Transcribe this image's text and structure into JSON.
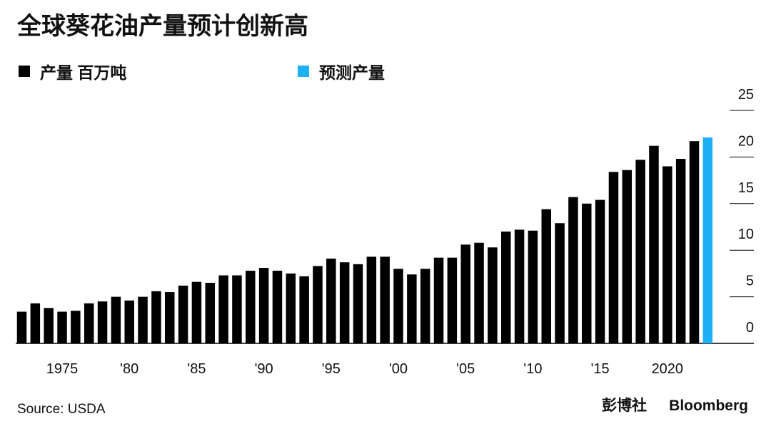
{
  "chart_data": {
    "type": "bar",
    "title": "全球葵花油产量预计创新高",
    "categories": [
      null,
      null,
      null,
      "1975",
      null,
      null,
      null,
      null,
      "'80",
      null,
      null,
      null,
      null,
      "'85",
      null,
      null,
      null,
      null,
      "'90",
      null,
      null,
      null,
      null,
      "'95",
      null,
      null,
      null,
      null,
      "'00",
      null,
      null,
      null,
      null,
      "'05",
      null,
      null,
      null,
      null,
      "'10",
      null,
      null,
      null,
      null,
      "'15",
      null,
      null,
      null,
      null,
      "2020",
      null,
      null,
      null
    ],
    "series": [
      {
        "name": "产量 百万吨",
        "color": "#000000",
        "values": [
          3.4,
          4.3,
          3.8,
          3.4,
          3.5,
          4.3,
          4.5,
          5.0,
          4.6,
          5.0,
          5.6,
          5.5,
          6.2,
          6.6,
          6.5,
          7.3,
          7.3,
          7.8,
          8.1,
          7.8,
          7.5,
          7.2,
          8.3,
          9.1,
          8.7,
          8.5,
          9.3,
          9.3,
          8.0,
          7.4,
          8.0,
          9.2,
          9.2,
          10.6,
          10.8,
          10.3,
          12.0,
          12.2,
          12.1,
          14.4,
          12.9,
          15.7,
          15.0,
          15.4,
          18.4,
          18.6,
          19.7,
          21.2,
          19.0,
          19.8,
          21.7,
          null
        ]
      },
      {
        "name": "预测产量",
        "color": "#1eb0f5",
        "values": [
          null,
          null,
          null,
          null,
          null,
          null,
          null,
          null,
          null,
          null,
          null,
          null,
          null,
          null,
          null,
          null,
          null,
          null,
          null,
          null,
          null,
          null,
          null,
          null,
          null,
          null,
          null,
          null,
          null,
          null,
          null,
          null,
          null,
          null,
          null,
          null,
          null,
          null,
          null,
          null,
          null,
          null,
          null,
          null,
          null,
          null,
          null,
          null,
          null,
          null,
          null,
          22.1
        ]
      }
    ],
    "ylim": [
      0,
      25
    ],
    "yticks": [
      0,
      5,
      10,
      15,
      20,
      25
    ],
    "source": "Source: USDA",
    "brand_cn": "彭博社",
    "brand": "Bloomberg"
  }
}
